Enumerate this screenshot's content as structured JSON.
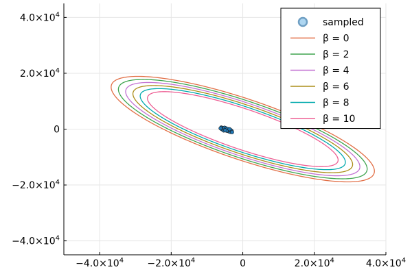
{
  "chart_data": {
    "type": "line",
    "title": "",
    "xlabel": "",
    "ylabel": "",
    "xlim": [
      -50000,
      40000
    ],
    "ylim": [
      -45000,
      45000
    ],
    "grid": true,
    "legend_position": "top-right",
    "x_ticks": [
      {
        "value": -40000,
        "label": "−4.0×10",
        "exp": "4"
      },
      {
        "value": -20000,
        "label": "−2.0×10",
        "exp": "4"
      },
      {
        "value": 0,
        "label": "0",
        "exp": ""
      },
      {
        "value": 20000,
        "label": "2.0×10",
        "exp": "4"
      },
      {
        "value": 40000,
        "label": "4.0×10",
        "exp": "4"
      }
    ],
    "y_ticks": [
      {
        "value": -40000,
        "label": "−4.0×10",
        "exp": "4"
      },
      {
        "value": -20000,
        "label": "−2.0×10",
        "exp": "4"
      },
      {
        "value": 0,
        "label": "0",
        "exp": ""
      },
      {
        "value": 20000,
        "label": "2.0×10",
        "exp": "4"
      },
      {
        "value": 40000,
        "label": "4.0×10",
        "exp": "4"
      }
    ],
    "scatter_series": {
      "name": "sampled",
      "color": "#1f77b4",
      "fill": "#aed6f1",
      "points": [
        [
          -6000,
          600
        ],
        [
          -5800,
          300
        ],
        [
          -5600,
          100
        ],
        [
          -5400,
          400
        ],
        [
          -5200,
          -200
        ],
        [
          -5000,
          200
        ],
        [
          -4800,
          -100
        ],
        [
          -4600,
          0
        ],
        [
          -4400,
          -300
        ],
        [
          -4200,
          -500
        ],
        [
          -4000,
          -200
        ],
        [
          -3800,
          -600
        ],
        [
          -3600,
          -400
        ],
        [
          -3400,
          -700
        ],
        [
          -3200,
          -900
        ],
        [
          -5900,
          0
        ],
        [
          -5500,
          -300
        ],
        [
          -5100,
          500
        ],
        [
          -4700,
          300
        ],
        [
          -4300,
          100
        ],
        [
          -3900,
          -800
        ],
        [
          -3500,
          -1000
        ],
        [
          -3300,
          -400
        ],
        [
          -3100,
          -700
        ],
        [
          -6200,
          300
        ],
        [
          -5300,
          -500
        ],
        [
          -4500,
          -600
        ],
        [
          -3700,
          0
        ],
        [
          -3000,
          -1100
        ],
        [
          -4900,
          -400
        ]
      ]
    },
    "ellipse_series": [
      {
        "name": "β = 0",
        "color": "#e26f46",
        "rx": 40000,
        "ry": 10500
      },
      {
        "name": "β = 2",
        "color": "#3da44d",
        "rx": 37800,
        "ry": 9800
      },
      {
        "name": "β = 4",
        "color": "#c271d2",
        "rx": 35600,
        "ry": 9100
      },
      {
        "name": "β = 6",
        "color": "#ac8d18",
        "rx": 33400,
        "ry": 8400
      },
      {
        "name": "β = 8",
        "color": "#00a9ad",
        "rx": 31200,
        "ry": 7700
      },
      {
        "name": "β = 10",
        "color": "#ed5e93",
        "rx": 29000,
        "ry": 7000
      }
    ],
    "ellipse_center": [
      0,
      0
    ],
    "ellipse_rotation_deg": -24
  }
}
